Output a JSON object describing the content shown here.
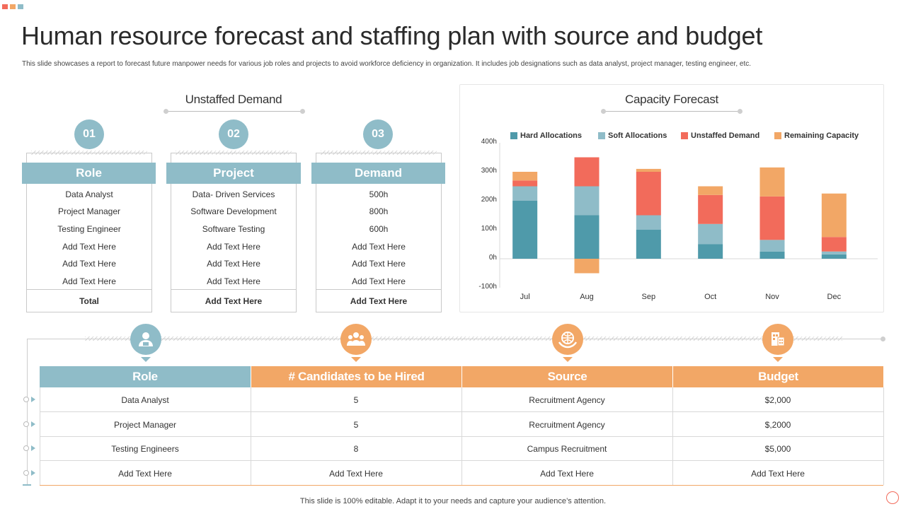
{
  "colors": {
    "teal": "#8fbcc8",
    "orange": "#f2a766",
    "hard": "#4f9aaa",
    "soft": "#8fbcc8",
    "unstaffed": "#f26b5b",
    "remaining": "#f2a766"
  },
  "title": "Human resource forecast and staffing plan with source and budget",
  "subtitle": "This slide showcases a report to forecast future manpower needs for various job roles and projects to avoid workforce deficiency in organization. It includes job designations such as data analyst, project manager, testing engineer, etc.",
  "unstaffed": {
    "heading": "Unstaffed Demand",
    "columns": [
      {
        "num": "01",
        "header": "Role",
        "items": [
          "Data Analyst",
          "Project Manager",
          "Testing Engineer",
          "Add Text Here",
          "Add Text Here",
          "Add Text Here"
        ],
        "total": "Total"
      },
      {
        "num": "02",
        "header": "Project",
        "items": [
          "Data- Driven Services",
          "Software Development",
          "Software Testing",
          "Add Text Here",
          "Add Text Here",
          "Add Text Here"
        ],
        "total": "Add  Text Here"
      },
      {
        "num": "03",
        "header": "Demand",
        "items": [
          "500h",
          "800h",
          "600h",
          "Add Text Here",
          "Add Text Here",
          "Add Text Here"
        ],
        "total": "Add  Text Here"
      }
    ]
  },
  "capacity": {
    "heading": "Capacity Forecast"
  },
  "chart_data": {
    "type": "bar",
    "stacked": true,
    "title": "Capacity Forecast",
    "categories": [
      "Jul",
      "Aug",
      "Sep",
      "Oct",
      "Nov",
      "Dec"
    ],
    "series": [
      {
        "name": "Hard Allocations",
        "values": [
          200,
          150,
          100,
          50,
          25,
          15
        ]
      },
      {
        "name": "Soft Allocations",
        "values": [
          50,
          100,
          50,
          70,
          40,
          10
        ]
      },
      {
        "name": "Unstaffed Demand",
        "values": [
          20,
          100,
          150,
          100,
          150,
          50
        ]
      },
      {
        "name": "Remaining Capacity",
        "values": [
          30,
          -50,
          10,
          30,
          100,
          150
        ]
      }
    ],
    "ylim": [
      -100,
      400
    ],
    "yticks": [
      -100,
      0,
      100,
      200,
      300,
      400
    ],
    "ytick_labels": [
      "-100h",
      "0h",
      "100h",
      "200h",
      "300h",
      "400h"
    ],
    "legend": "top",
    "xlabel": "",
    "ylabel": ""
  },
  "budget_table": {
    "icons": [
      "user-icon",
      "group-icon",
      "globe-hands-icon",
      "budget-building-icon"
    ],
    "headers": [
      "Role",
      "# Candidates to be Hired",
      "Source",
      "Budget"
    ],
    "rows": [
      [
        "Data Analyst",
        "5",
        "Recruitment Agency",
        "$2,000"
      ],
      [
        "Project Manager",
        "5",
        "Recruitment Agency",
        "$,2000"
      ],
      [
        "Testing Engineers",
        "8",
        "Campus Recruitment",
        "$5,000"
      ],
      [
        "Add Text Here",
        "Add Text Here",
        "Add Text Here",
        "Add Text Here"
      ]
    ]
  },
  "footer": "This slide is 100% editable.  Adapt it to your needs and capture your audience’s attention."
}
